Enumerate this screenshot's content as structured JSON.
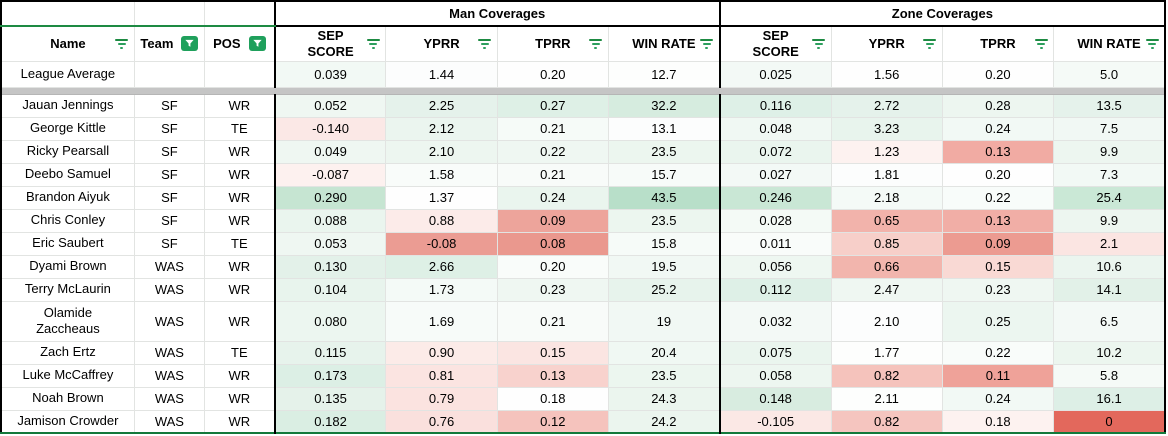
{
  "group_headers": {
    "man": "Man Coverages",
    "zone": "Zone Coverages"
  },
  "columns": {
    "name": "Name",
    "team": "Team",
    "pos": "POS",
    "metrics": [
      "SEP\nSCORE",
      "YPRR",
      "TPRR",
      "WIN RATE"
    ]
  },
  "icons": {
    "name_header": "sort-lines-icon",
    "team_header": "funnel-filter-icon",
    "pos_header": "funnel-filter-icon",
    "metric_headers": "sort-lines-icon"
  },
  "colors": {
    "filter_button_green": "#1fa05c",
    "frozen_line_green": "#1d8a42",
    "section_border_black": "#000000",
    "divider_gray": "#c5c5c5",
    "positive_green_strong": "#b8dfc9",
    "negative_red_strong": "#e3685c"
  },
  "league_average": {
    "name": "League Average",
    "man": [
      "0.039",
      "1.44",
      "0.20",
      "12.7"
    ],
    "zone": [
      "0.025",
      "1.56",
      "0.20",
      "5.0"
    ],
    "man_colors": [
      "#f2f9f5",
      "#fcfdfd",
      "#fefefe",
      "#fdfefd"
    ],
    "zone_colors": [
      "#f3f9f6",
      "#fefefe",
      "#fefefe",
      "#f5faf7"
    ]
  },
  "players": [
    {
      "name": "Jauan Jennings",
      "team": "SF",
      "pos": "WR",
      "man": [
        "0.052",
        "2.25",
        "0.27",
        "32.2"
      ],
      "zone": [
        "0.116",
        "2.72",
        "0.28",
        "13.5"
      ],
      "man_colors": [
        "#eff7f2",
        "#e5f2eb",
        "#def0e6",
        "#d6ecdf"
      ],
      "zone_colors": [
        "#def0e7",
        "#e5f2eb",
        "#edf6f0",
        "#e5f2eb"
      ]
    },
    {
      "name": "George Kittle",
      "team": "SF",
      "pos": "TE",
      "man": [
        "-0.140",
        "2.12",
        "0.21",
        "13.1"
      ],
      "zone": [
        "0.048",
        "3.23",
        "0.24",
        "7.5"
      ],
      "man_colors": [
        "#fbe8e6",
        "#ebf5ef",
        "#f6fbf8",
        "#fcfdfd"
      ],
      "zone_colors": [
        "#f0f8f3",
        "#e8f4ed",
        "#f2f9f5",
        "#f1f8f4"
      ]
    },
    {
      "name": "Ricky Pearsall",
      "team": "SF",
      "pos": "WR",
      "man": [
        "0.049",
        "2.10",
        "0.22",
        "23.5"
      ],
      "zone": [
        "0.072",
        "1.23",
        "0.13",
        "9.9"
      ],
      "man_colors": [
        "#eff7f2",
        "#edf6f0",
        "#eff7f2",
        "#ecf6ef"
      ],
      "zone_colors": [
        "#eaf5ee",
        "#fdf2f0",
        "#f1aba3",
        "#edf6f0"
      ]
    },
    {
      "name": "Deebo Samuel",
      "team": "SF",
      "pos": "WR",
      "man": [
        "-0.087",
        "1.58",
        "0.21",
        "15.7"
      ],
      "zone": [
        "0.027",
        "1.81",
        "0.20",
        "7.3"
      ],
      "man_colors": [
        "#fdf1ef",
        "#f9fcfa",
        "#f8fbf9",
        "#f7fbf9"
      ],
      "zone_colors": [
        "#f3f9f6",
        "#fcfdfd",
        "#fefefe",
        "#f2f9f5"
      ]
    },
    {
      "name": "Brandon Aiyuk",
      "team": "SF",
      "pos": "WR",
      "man": [
        "0.290",
        "1.37",
        "0.24",
        "43.5"
      ],
      "zone": [
        "0.246",
        "2.18",
        "0.22",
        "25.4"
      ],
      "man_colors": [
        "#c6e5d2",
        "#fefefe",
        "#eaf5ee",
        "#b8dfc9"
      ],
      "zone_colors": [
        "#c9e7d5",
        "#f4faf7",
        "#f8fcfa",
        "#cae8d6"
      ]
    },
    {
      "name": "Chris Conley",
      "team": "SF",
      "pos": "WR",
      "man": [
        "0.088",
        "0.88",
        "0.09",
        "23.5"
      ],
      "zone": [
        "0.028",
        "0.65",
        "0.13",
        "9.9"
      ],
      "man_colors": [
        "#eaf5ee",
        "#fcebe9",
        "#eda49b",
        "#ecf6ef"
      ],
      "zone_colors": [
        "#f4faf6",
        "#f2b3ab",
        "#f1aea6",
        "#edf6f0"
      ]
    },
    {
      "name": "Eric Saubert",
      "team": "SF",
      "pos": "TE",
      "man": [
        "0.053",
        "-0.08",
        "0.08",
        "15.8"
      ],
      "zone": [
        "0.011",
        "0.85",
        "0.09",
        "2.1"
      ],
      "man_colors": [
        "#eff7f2",
        "#eb9c93",
        "#ea988e",
        "#f6fbf8"
      ],
      "zone_colors": [
        "#f9fcfa",
        "#f7cfc9",
        "#ec9b91",
        "#fbe5e2"
      ]
    },
    {
      "name": "Dyami Brown",
      "team": "WAS",
      "pos": "WR",
      "man": [
        "0.130",
        "2.66",
        "0.20",
        "19.5"
      ],
      "zone": [
        "0.056",
        "0.66",
        "0.15",
        "10.6"
      ],
      "man_colors": [
        "#e3f1e9",
        "#def0e6",
        "#f9fcfa",
        "#f1f8f4"
      ],
      "zone_colors": [
        "#eef7f1",
        "#f2b5ad",
        "#f9d9d4",
        "#ebf5ef"
      ]
    },
    {
      "name": "Terry McLaurin",
      "team": "WAS",
      "pos": "WR",
      "man": [
        "0.104",
        "1.73",
        "0.23",
        "25.2"
      ],
      "zone": [
        "0.112",
        "2.47",
        "0.23",
        "14.1"
      ],
      "man_colors": [
        "#e8f4ed",
        "#f4faf7",
        "#eff7f2",
        "#e7f3ec"
      ],
      "zone_colors": [
        "#def0e7",
        "#eff7f2",
        "#eff7f2",
        "#e2f1e8"
      ]
    },
    {
      "name": "Olamide\nZaccheaus",
      "team": "WAS",
      "pos": "WR",
      "man": [
        "0.080",
        "1.69",
        "0.21",
        "19"
      ],
      "zone": [
        "0.032",
        "2.10",
        "0.25",
        "6.5"
      ],
      "man_colors": [
        "#ecf6f0",
        "#f7fbf9",
        "#f8fbf9",
        "#f1f8f4"
      ],
      "zone_colors": [
        "#f3f9f6",
        "#fcfdfd",
        "#ecf6f0",
        "#f3f9f6"
      ]
    },
    {
      "name": "Zach Ertz",
      "team": "WAS",
      "pos": "TE",
      "man": [
        "0.115",
        "0.90",
        "0.15",
        "20.4"
      ],
      "zone": [
        "0.075",
        "1.77",
        "0.22",
        "10.2"
      ],
      "man_colors": [
        "#e7f3ec",
        "#fcebe8",
        "#fbe5e2",
        "#f0f8f3"
      ],
      "zone_colors": [
        "#eaf5ee",
        "#fdfefd",
        "#f9fcfa",
        "#ecf6ef"
      ]
    },
    {
      "name": "Luke McCaffrey",
      "team": "WAS",
      "pos": "WR",
      "man": [
        "0.173",
        "0.81",
        "0.13",
        "23.5"
      ],
      "zone": [
        "0.058",
        "0.82",
        "0.11",
        "5.8"
      ],
      "man_colors": [
        "#dcefe5",
        "#fbe4e1",
        "#f8d2cd",
        "#ecf6ef"
      ],
      "zone_colors": [
        "#edf6f0",
        "#f5c3bc",
        "#efa299",
        "#f5faf7"
      ]
    },
    {
      "name": "Noah Brown",
      "team": "WAS",
      "pos": "WR",
      "man": [
        "0.135",
        "0.79",
        "0.18",
        "24.3"
      ],
      "zone": [
        "0.148",
        "2.11",
        "0.24",
        "16.1"
      ],
      "man_colors": [
        "#e5f2ea",
        "#fbe3e0",
        "#fefefe",
        "#ebf5ee"
      ],
      "zone_colors": [
        "#d8ece0",
        "#fdfefd",
        "#f2f9f5",
        "#ddefe6"
      ]
    },
    {
      "name": "Jamison Crowder",
      "team": "WAS",
      "pos": "WR",
      "man": [
        "0.182",
        "0.76",
        "0.12",
        "24.2"
      ],
      "zone": [
        "-0.105",
        "0.82",
        "0.18",
        "0"
      ],
      "man_colors": [
        "#daeee3",
        "#fae0dd",
        "#f5c3bd",
        "#ebf5ee"
      ],
      "zone_colors": [
        "#fbe8e5",
        "#f5c5bf",
        "#fdf2f0",
        "#e3685c"
      ]
    }
  ]
}
